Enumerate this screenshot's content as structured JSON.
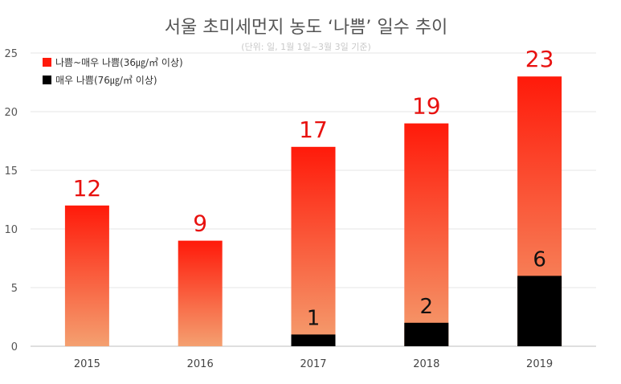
{
  "chart_data": {
    "type": "bar",
    "title": "서울 초미세먼지 농도 ‘나쁨’ 일수 추이",
    "subtitle": "(단위: 일, 1월 1일~3월 3일 기준)",
    "categories": [
      "2015",
      "2016",
      "2017",
      "2018",
      "2019"
    ],
    "series": [
      {
        "name": "나쁨~매우 나쁨(36㎍/㎥ 이상)",
        "values": [
          12,
          9,
          17,
          19,
          23
        ],
        "color": "#ff1a0a",
        "color_light": "#f4a070"
      },
      {
        "name": "매우 나쁨(76㎍/㎥ 이상)",
        "values": [
          0,
          0,
          1,
          2,
          6
        ],
        "color": "#000000"
      }
    ],
    "total_labels": [
      "12",
      "9",
      "17",
      "19",
      "23"
    ],
    "very_bad_labels": [
      "",
      "",
      "1",
      "2",
      "6"
    ],
    "ylim": [
      0,
      25
    ],
    "yticks": [
      "0",
      "5",
      "10",
      "15",
      "20",
      "25"
    ],
    "grid": true,
    "legend_position": "top-left"
  }
}
